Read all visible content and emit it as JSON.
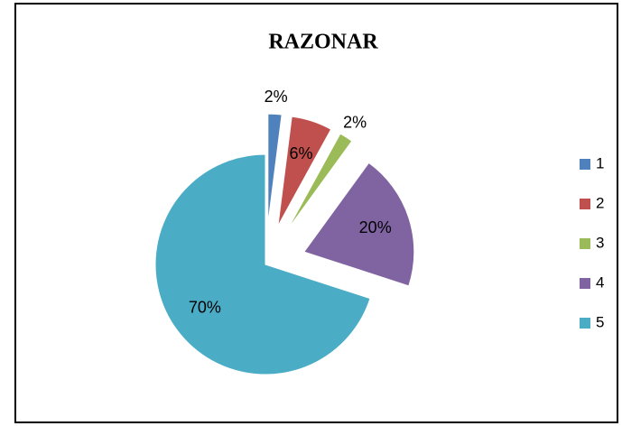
{
  "chart_data": {
    "type": "pie",
    "title": "RAZONAR",
    "categories": [
      "1",
      "2",
      "3",
      "4",
      "5"
    ],
    "values": [
      2,
      6,
      2,
      20,
      70
    ],
    "value_labels": [
      "2%",
      "6%",
      "2%",
      "20%",
      "70%"
    ],
    "colors": [
      "#4f81bd",
      "#c0504d",
      "#9bbb59",
      "#8064a2",
      "#4bacc6"
    ],
    "legend": "right"
  }
}
